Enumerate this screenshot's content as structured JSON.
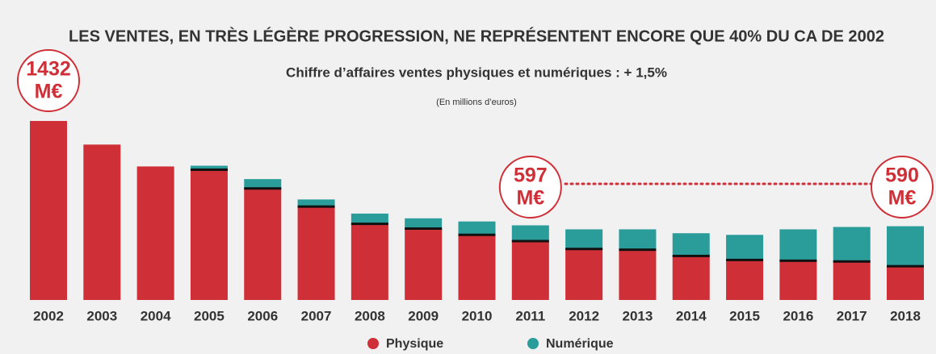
{
  "chart_data": {
    "type": "stacked_bar",
    "title": "LES VENTES, EN TRÈS LÉGÈRE PROGRESSION, NE REPRÉSENTENT ENCORE QUE 40% DU CA DE 2002",
    "subtitle": "Chiffre d’affaires ventes physiques et numériques : + 1,5%",
    "note": "(En millions d’euros)",
    "categories": [
      "2002",
      "2003",
      "2004",
      "2005",
      "2006",
      "2007",
      "2008",
      "2009",
      "2010",
      "2011",
      "2012",
      "2013",
      "2014",
      "2015",
      "2016",
      "2017",
      "2018"
    ],
    "series": [
      {
        "name": "Physique",
        "color": "#cf2f37",
        "values": [
          1432,
          1243,
          1068,
          1042,
          892,
          747,
          609,
          571,
          521,
          471,
          408,
          402,
          352,
          320,
          314,
          308,
          270
        ]
      },
      {
        "name": "Numérique",
        "color": "#2a9d9b",
        "values": [
          0,
          0,
          0,
          32,
          75,
          57,
          82,
          82,
          107,
          126,
          157,
          163,
          182,
          201,
          251,
          276,
          320
        ]
      }
    ],
    "annotations": [
      {
        "x": "2002",
        "lines": [
          "1432",
          "M€"
        ]
      },
      {
        "x": "2011",
        "lines": [
          "597",
          "M€"
        ]
      },
      {
        "x": "2018",
        "lines": [
          "590",
          "M€"
        ]
      }
    ]
  }
}
